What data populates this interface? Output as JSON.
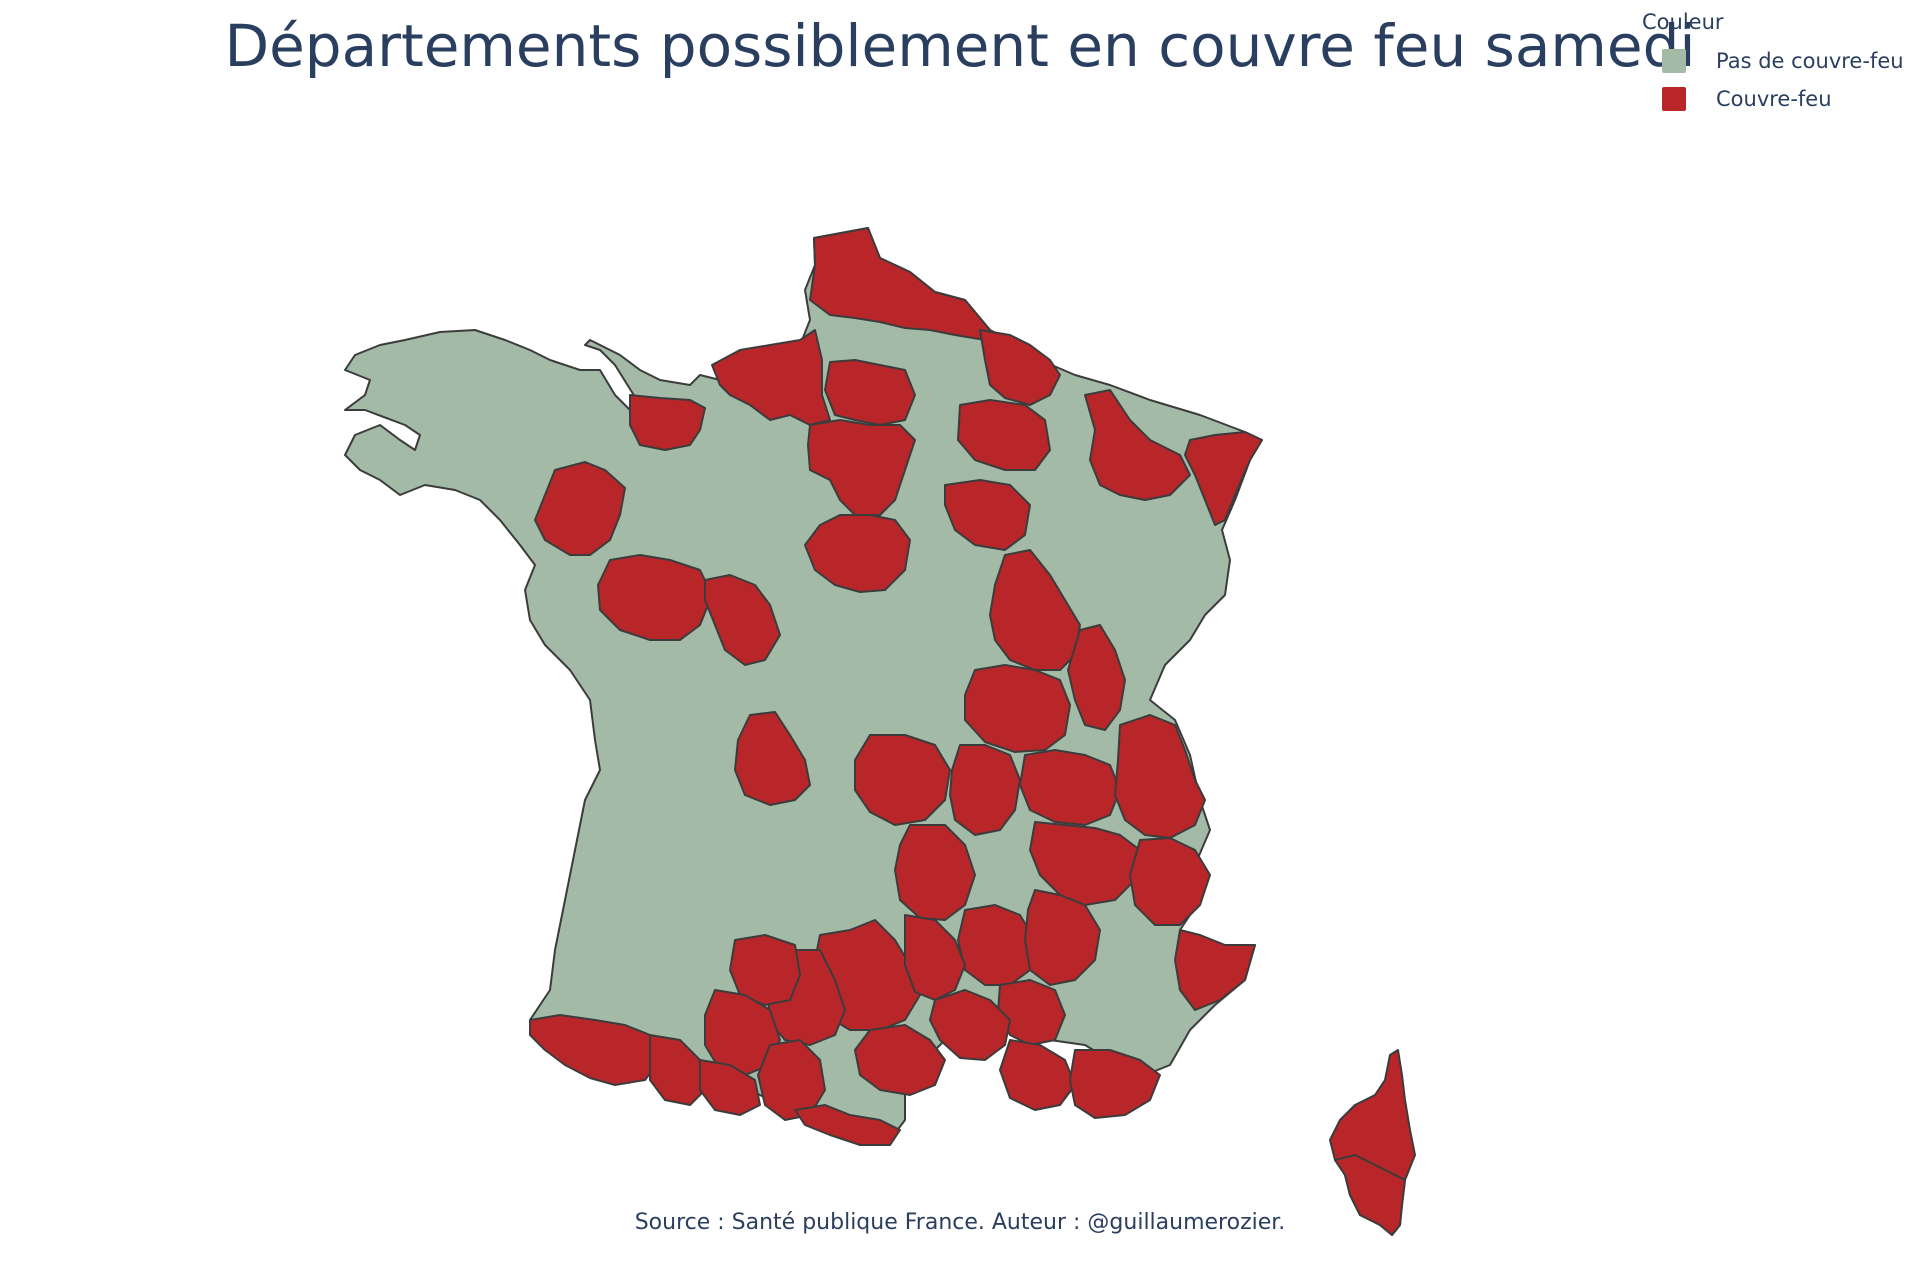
{
  "title": "Départements possiblement en couvre feu samedi",
  "legend": {
    "title": "Couleur",
    "items": [
      {
        "label": "Pas de couvre-feu",
        "color": "#a2baa6"
      },
      {
        "label": "Couvre-feu",
        "color": "#b8262a"
      }
    ]
  },
  "source": "Source : Santé publique France. Auteur : @guillaumerozier.",
  "colors": {
    "no_curfew": "#a2baa6",
    "curfew": "#b8262a",
    "border": "#3c3c3c"
  },
  "map": {
    "region": "France métropolitaine",
    "categories": [
      "Pas de couvre-feu",
      "Couvre-feu"
    ]
  }
}
